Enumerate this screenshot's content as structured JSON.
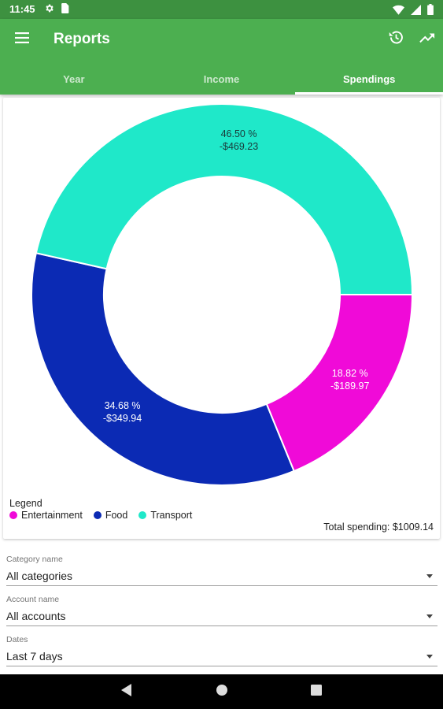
{
  "status_bar": {
    "time": "11:45",
    "icons": [
      "settings-icon",
      "sim-card-icon",
      "wifi-icon",
      "cellular-icon",
      "battery-icon"
    ]
  },
  "app_bar": {
    "title": "Reports",
    "icons": [
      "menu-icon",
      "history-icon",
      "trending-up-icon"
    ],
    "background": "#4caf50"
  },
  "tabs": [
    {
      "label": "Year",
      "active": false
    },
    {
      "label": "Income",
      "active": false
    },
    {
      "label": "Spendings",
      "active": true
    }
  ],
  "chart_data": {
    "type": "pie",
    "donut": true,
    "slices": [
      {
        "name": "Entertainment",
        "percent": 18.82,
        "percent_label": "18.82 %",
        "amount_label": "-$189.97",
        "color": "#f00ad8"
      },
      {
        "name": "Food",
        "percent": 34.68,
        "percent_label": "34.68 %",
        "amount_label": "-$349.94",
        "color": "#0b2ab4"
      },
      {
        "name": "Transport",
        "percent": 46.5,
        "percent_label": "46.50 %",
        "amount_label": "-$469.23",
        "color": "#1fe8c9"
      }
    ],
    "legend_title": "Legend",
    "legend_position": "bottom-left",
    "total_label": "Total spending: $1009.14"
  },
  "filters": {
    "category": {
      "label": "Category name",
      "value": "All categories"
    },
    "account": {
      "label": "Account name",
      "value": "All accounts"
    },
    "dates": {
      "label": "Dates",
      "value": "Last 7 days"
    }
  },
  "nav_bar": {
    "icons": [
      "back-icon",
      "home-icon",
      "recents-icon"
    ]
  }
}
